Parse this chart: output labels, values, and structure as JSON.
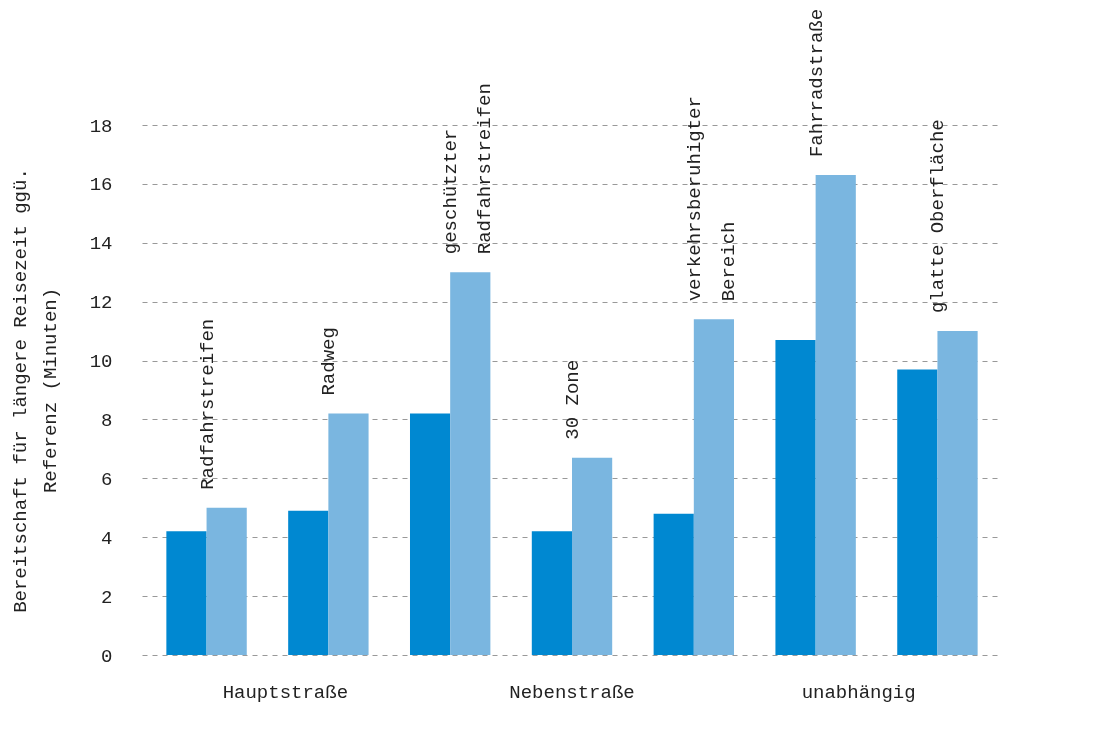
{
  "chart_data": {
    "type": "bar",
    "ylabel": "Bereitschaft für längere Reisezeit ggü.\nReferenz (Minuten)",
    "categories": [
      "Radfahrstreifen",
      "Radweg",
      "geschützter\nRadfahrstreifen",
      "30 Zone",
      "verkehrsberuhigter\nBereich",
      "Fahrradstraße",
      "glatte Oberfläche"
    ],
    "series": [
      {
        "color": "#0088d1",
        "values": [
          4.2,
          4.9,
          8.2,
          4.2,
          4.8,
          10.7,
          9.7
        ]
      },
      {
        "color": "#7ab6e0",
        "values": [
          5.0,
          8.2,
          13.0,
          6.7,
          11.4,
          16.3,
          11.0
        ]
      }
    ],
    "ylim": [
      0,
      18
    ],
    "yticks": [
      0,
      2,
      4,
      6,
      8,
      10,
      12,
      14,
      16,
      18
    ],
    "grid": "y",
    "legend": false,
    "annotations": [
      "Hauptstraße",
      "Nebenstraße",
      "unabhängig"
    ]
  }
}
